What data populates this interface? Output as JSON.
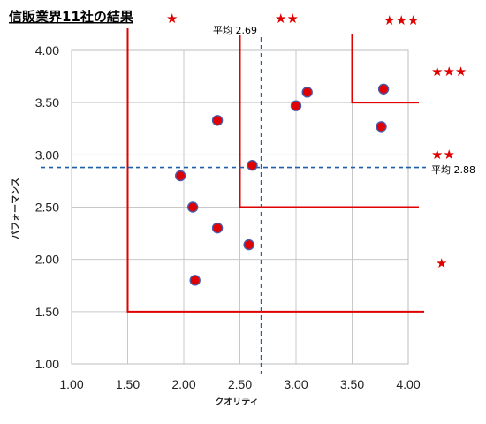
{
  "chart_data": {
    "type": "scatter",
    "title": "信販業界11社の結果",
    "xlabel": "クオリティ",
    "ylabel": "パフォーマンス",
    "xlim": [
      1.0,
      4.0
    ],
    "ylim": [
      1.0,
      4.0
    ],
    "x_ticks": [
      "1.00",
      "1.50",
      "2.00",
      "2.50",
      "3.00",
      "3.50",
      "4.00"
    ],
    "y_ticks": [
      "1.00",
      "1.50",
      "2.00",
      "2.50",
      "3.00",
      "3.50",
      "4.00"
    ],
    "grid": true,
    "points": [
      {
        "x": 1.97,
        "y": 2.8
      },
      {
        "x": 2.08,
        "y": 2.5
      },
      {
        "x": 2.1,
        "y": 1.8
      },
      {
        "x": 2.3,
        "y": 3.33
      },
      {
        "x": 2.3,
        "y": 2.3
      },
      {
        "x": 2.58,
        "y": 2.14
      },
      {
        "x": 2.61,
        "y": 2.9
      },
      {
        "x": 3.0,
        "y": 3.47
      },
      {
        "x": 3.1,
        "y": 3.6
      },
      {
        "x": 3.76,
        "y": 3.27
      },
      {
        "x": 3.78,
        "y": 3.63
      }
    ],
    "point_color": "#e00000",
    "point_edge_color": "#4a5aa8",
    "average_x": {
      "value": 2.69,
      "label": "平均 2.69"
    },
    "average_y": {
      "value": 2.88,
      "label": "平均 2.88"
    },
    "average_line_color": "#1f5fa8",
    "zones": [
      {
        "label": "★",
        "x_from": 1.5,
        "y_from": 1.5
      },
      {
        "label": "★★",
        "x_from": 2.5,
        "y_from": 2.5
      },
      {
        "label": "★★★",
        "x_from": 3.5,
        "y_from": 3.5
      }
    ],
    "zone_color": "#e00000",
    "stars": [
      "★",
      "★★",
      "★★★",
      "★★★",
      "★★",
      "★"
    ]
  }
}
